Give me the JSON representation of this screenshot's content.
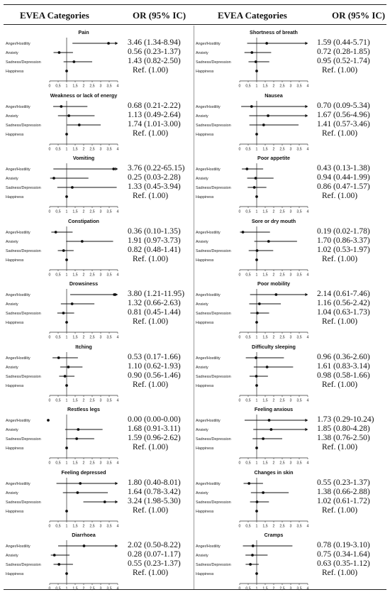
{
  "header": {
    "left_categories": "EVEA Categories",
    "left_or": "OR (95% IC)",
    "right_categories": "EVEA Categories",
    "right_or": "OR (95% IC)"
  },
  "chart_data": {
    "type": "forest",
    "xlim": [
      0,
      4
    ],
    "reference_value": 1,
    "x_tick_labels": [
      "0",
      "0,5",
      "1",
      "1,5",
      "2",
      "2,5",
      "3",
      "3,5",
      "4"
    ],
    "row_labels": [
      "Anger/Hostility",
      "Anxiety",
      "Sadness/Depression",
      "Happiness"
    ],
    "panels": [
      {
        "title": "Pain",
        "column": "left",
        "rows": [
          {
            "label": "Anger/Hostility",
            "or": 3.46,
            "lo": 1.34,
            "hi": 8.94,
            "text": "3.46 (1.34-8.94)"
          },
          {
            "label": "Anxiety",
            "or": 0.56,
            "lo": 0.23,
            "hi": 1.37,
            "text": "0.56 (0.23-1.37)"
          },
          {
            "label": "Sadness/Depression",
            "or": 1.43,
            "lo": 0.82,
            "hi": 2.5,
            "text": "1.43 (0.82-2.50)"
          },
          {
            "label": "Happiness",
            "or": 1.0,
            "lo": 1.0,
            "hi": 1.0,
            "text": "Ref. (1.00)"
          }
        ]
      },
      {
        "title": "Shortness of breath",
        "column": "right",
        "rows": [
          {
            "label": "Anger/Hostility",
            "or": 1.59,
            "lo": 0.44,
            "hi": 5.71,
            "text": "1.59 (0.44-5.71)"
          },
          {
            "label": "Anxiety",
            "or": 0.72,
            "lo": 0.28,
            "hi": 1.85,
            "text": "0.72 (0.28-1.85)"
          },
          {
            "label": "Sadness/Depression",
            "or": 0.95,
            "lo": 0.52,
            "hi": 1.74,
            "text": "0.95 (0.52-1.74)"
          },
          {
            "label": "Happiness",
            "or": 1.0,
            "lo": 1.0,
            "hi": 1.0,
            "text": "Ref. (1.00)"
          }
        ]
      },
      {
        "title": "Weakness or lack of energy",
        "column": "left",
        "rows": [
          {
            "label": "Anger/Hostility",
            "or": 0.68,
            "lo": 0.21,
            "hi": 2.22,
            "text": "0.68 (0.21-2.22)"
          },
          {
            "label": "Anxiety",
            "or": 1.13,
            "lo": 0.49,
            "hi": 2.64,
            "text": "1.13 (0.49-2.64)"
          },
          {
            "label": "Sadness/Depression",
            "or": 1.74,
            "lo": 1.01,
            "hi": 3.0,
            "text": "1.74 (1.01-3.00)"
          },
          {
            "label": "Happiness",
            "or": 1.0,
            "lo": 1.0,
            "hi": 1.0,
            "text": "Ref. (1.00)"
          }
        ]
      },
      {
        "title": "Nausea",
        "column": "right",
        "rows": [
          {
            "label": "Anger/Hostility",
            "or": 0.7,
            "lo": 0.09,
            "hi": 5.34,
            "text": "0.70 (0.09-5.34)"
          },
          {
            "label": "Anxiety",
            "or": 1.67,
            "lo": 0.56,
            "hi": 4.96,
            "text": "1.67 (0.56-4.96)"
          },
          {
            "label": "Sadness/Depression",
            "or": 1.41,
            "lo": 0.57,
            "hi": 3.46,
            "text": "1.41 (0.57-3.46)"
          },
          {
            "label": "Happiness",
            "or": 1.0,
            "lo": 1.0,
            "hi": 1.0,
            "text": "Ref. (1.00)"
          }
        ]
      },
      {
        "title": "Vomiting",
        "column": "left",
        "rows": [
          {
            "label": "Anger/Hostility",
            "or": 3.76,
            "lo": 0.22,
            "hi": 65.15,
            "text": "3.76 (0.22-65.15)"
          },
          {
            "label": "Anxiety",
            "or": 0.25,
            "lo": 0.03,
            "hi": 2.28,
            "text": "0.25 (0.03-2.28)"
          },
          {
            "label": "Sadness/Depression",
            "or": 1.33,
            "lo": 0.45,
            "hi": 3.94,
            "text": "1.33 (0.45-3.94)"
          },
          {
            "label": "Happiness",
            "or": 1.0,
            "lo": 1.0,
            "hi": 1.0,
            "text": "Ref. (1.00)"
          }
        ]
      },
      {
        "title": "Poor appetite",
        "column": "right",
        "rows": [
          {
            "label": "Anger/Hostility",
            "or": 0.43,
            "lo": 0.13,
            "hi": 1.38,
            "text": "0.43 (0.13-1.38)"
          },
          {
            "label": "Anxiety",
            "or": 0.94,
            "lo": 0.44,
            "hi": 1.99,
            "text": "0.94 (0.44-1.99)"
          },
          {
            "label": "Sadness/Depression",
            "or": 0.86,
            "lo": 0.47,
            "hi": 1.57,
            "text": "0.86 (0.47-1.57)"
          },
          {
            "label": "Happiness",
            "or": 1.0,
            "lo": 1.0,
            "hi": 1.0,
            "text": "Ref. (1.00)"
          }
        ]
      },
      {
        "title": "Constipation",
        "column": "left",
        "rows": [
          {
            "label": "Anger/Hostility",
            "or": 0.36,
            "lo": 0.1,
            "hi": 1.35,
            "text": "0.36 (0.10-1.35)"
          },
          {
            "label": "Anxiety",
            "or": 1.91,
            "lo": 0.97,
            "hi": 3.73,
            "text": "1.91 (0.97-3.73)"
          },
          {
            "label": "Sadness/Depression",
            "or": 0.82,
            "lo": 0.48,
            "hi": 1.41,
            "text": "0.82 (0.48-1.41)"
          },
          {
            "label": "Happiness",
            "or": 1.0,
            "lo": 1.0,
            "hi": 1.0,
            "text": "Ref. (1.00)"
          }
        ]
      },
      {
        "title": "Sore or dry mouth",
        "column": "right",
        "rows": [
          {
            "label": "Anger/Hostility",
            "or": 0.19,
            "lo": 0.02,
            "hi": 1.78,
            "text": "0.19 (0.02-1.78)"
          },
          {
            "label": "Anxiety",
            "or": 1.7,
            "lo": 0.86,
            "hi": 3.37,
            "text": "1.70 (0.86-3.37)"
          },
          {
            "label": "Sadness/Depression",
            "or": 1.02,
            "lo": 0.53,
            "hi": 1.97,
            "text": "1.02 (0.53-1.97)"
          },
          {
            "label": "Happiness",
            "or": 1.0,
            "lo": 1.0,
            "hi": 1.0,
            "text": "Ref. (1.00)"
          }
        ]
      },
      {
        "title": "Drowsiness",
        "column": "left",
        "rows": [
          {
            "label": "Anger/Hostility",
            "or": 3.8,
            "lo": 1.21,
            "hi": 11.95,
            "text": "3.80 (1.21-11.95)"
          },
          {
            "label": "Anxiety",
            "or": 1.32,
            "lo": 0.66,
            "hi": 2.63,
            "text": "1.32 (0.66-2.63)"
          },
          {
            "label": "Sadness/Depression",
            "or": 0.81,
            "lo": 0.45,
            "hi": 1.44,
            "text": "0.81 (0.45-1.44)"
          },
          {
            "label": "Happiness",
            "or": 1.0,
            "lo": 1.0,
            "hi": 1.0,
            "text": "Ref. (1.00)"
          }
        ]
      },
      {
        "title": "Poor mobility",
        "column": "right",
        "rows": [
          {
            "label": "Anger/Hostility",
            "or": 2.14,
            "lo": 0.61,
            "hi": 7.46,
            "text": "2.14 (0.61-7.46)"
          },
          {
            "label": "Anxiety",
            "or": 1.16,
            "lo": 0.56,
            "hi": 2.42,
            "text": "1.16 (0.56-2.42)"
          },
          {
            "label": "Sadness/Depression",
            "or": 1.04,
            "lo": 0.63,
            "hi": 1.73,
            "text": "1.04 (0.63-1.73)"
          },
          {
            "label": "Happiness",
            "or": 1.0,
            "lo": 1.0,
            "hi": 1.0,
            "text": "Ref. (1.00)"
          }
        ]
      },
      {
        "title": "Itching",
        "column": "left",
        "rows": [
          {
            "label": "Anger/Hostility",
            "or": 0.53,
            "lo": 0.17,
            "hi": 1.66,
            "text": "0.53 (0.17-1.66)"
          },
          {
            "label": "Anxiety",
            "or": 1.1,
            "lo": 0.62,
            "hi": 1.93,
            "text": "1.10 (0.62-1.93)"
          },
          {
            "label": "Sadness/Depression",
            "or": 0.9,
            "lo": 0.56,
            "hi": 1.46,
            "text": "0.90 (0.56-1.46)"
          },
          {
            "label": "Happiness",
            "or": 1.0,
            "lo": 1.0,
            "hi": 1.0,
            "text": "Ref. (1.00)"
          }
        ]
      },
      {
        "title": "Difficulty sleeping",
        "column": "right",
        "rows": [
          {
            "label": "Anger/Hostility",
            "or": 0.96,
            "lo": 0.36,
            "hi": 2.6,
            "text": "0.96 (0.36-2.60)"
          },
          {
            "label": "Anxiety",
            "or": 1.61,
            "lo": 0.83,
            "hi": 3.14,
            "text": "1.61 (0.83-3.14)"
          },
          {
            "label": "Sadness/Depression",
            "or": 0.98,
            "lo": 0.58,
            "hi": 1.66,
            "text": "0.98 (0.58-1.66)"
          },
          {
            "label": "Happiness",
            "or": 1.0,
            "lo": 1.0,
            "hi": 1.0,
            "text": "Ref. (1.00)"
          }
        ]
      },
      {
        "title": "Restless legs",
        "column": "left",
        "rows": [
          {
            "label": "Anger/Hostility",
            "or": 0.0,
            "lo": 0.0,
            "hi": 0.0,
            "text": "0.00 (0.00-0.00)"
          },
          {
            "label": "Anxiety",
            "or": 1.68,
            "lo": 0.91,
            "hi": 3.11,
            "text": "1.68 (0.91-3.11)"
          },
          {
            "label": "Sadness/Depression",
            "or": 1.59,
            "lo": 0.96,
            "hi": 2.62,
            "text": "1.59 (0.96-2.62)"
          },
          {
            "label": "Happiness",
            "or": 1.0,
            "lo": 1.0,
            "hi": 1.0,
            "text": "Ref. (1.00)"
          }
        ]
      },
      {
        "title": "Feeling anxious",
        "column": "right",
        "rows": [
          {
            "label": "Anger/Hostility",
            "or": 1.73,
            "lo": 0.29,
            "hi": 10.24,
            "text": "1.73 (0.29-10.24)"
          },
          {
            "label": "Anxiety",
            "or": 1.85,
            "lo": 0.8,
            "hi": 4.28,
            "text": "1.85 (0.80-4.28)"
          },
          {
            "label": "Sadness/Depression",
            "or": 1.38,
            "lo": 0.76,
            "hi": 2.5,
            "text": "1.38 (0.76-2.50)"
          },
          {
            "label": "Happiness",
            "or": 1.0,
            "lo": 1.0,
            "hi": 1.0,
            "text": "Ref. (1.00)"
          }
        ]
      },
      {
        "title": "Feeling depressed",
        "column": "left",
        "rows": [
          {
            "label": "Anger/Hostility",
            "or": 1.8,
            "lo": 0.4,
            "hi": 8.01,
            "text": "1.80 (0.40-8.01)"
          },
          {
            "label": "Anxiety",
            "or": 1.64,
            "lo": 0.78,
            "hi": 3.42,
            "text": "1.64 (0.78-3.42)"
          },
          {
            "label": "Sadness/Depression",
            "or": 3.24,
            "lo": 1.98,
            "hi": 5.3,
            "text": "3.24 (1.98-5.30)"
          },
          {
            "label": "Happiness",
            "or": 1.0,
            "lo": 1.0,
            "hi": 1.0,
            "text": "Ref. (1.00)"
          }
        ]
      },
      {
        "title": "Changes in skin",
        "column": "right",
        "rows": [
          {
            "label": "Anger/Hostility",
            "or": 0.55,
            "lo": 0.23,
            "hi": 1.37,
            "text": "0.55 (0.23-1.37)"
          },
          {
            "label": "Anxiety",
            "or": 1.38,
            "lo": 0.66,
            "hi": 2.88,
            "text": "1.38 (0.66-2.88)"
          },
          {
            "label": "Sadness/Depression",
            "or": 1.02,
            "lo": 0.61,
            "hi": 1.72,
            "text": "1.02 (0.61-1.72)"
          },
          {
            "label": "Happiness",
            "or": 1.0,
            "lo": 1.0,
            "hi": 1.0,
            "text": "Ref. (1.00)"
          }
        ]
      },
      {
        "title": "Diarrhoea",
        "column": "left",
        "rows": [
          {
            "label": "Anger/Hostility",
            "or": 2.02,
            "lo": 0.5,
            "hi": 8.22,
            "text": "2.02 (0.50-8.22)"
          },
          {
            "label": "Anxiety",
            "or": 0.28,
            "lo": 0.07,
            "hi": 1.17,
            "text": "0.28 (0.07-1.17)"
          },
          {
            "label": "Sadness/Depression",
            "or": 0.55,
            "lo": 0.23,
            "hi": 1.37,
            "text": "0.55 (0.23-1.37)"
          },
          {
            "label": "Happiness",
            "or": 1.0,
            "lo": 1.0,
            "hi": 1.0,
            "text": "Ref. (1.00)"
          }
        ]
      },
      {
        "title": "Cramps",
        "column": "right",
        "rows": [
          {
            "label": "Anger/Hostility",
            "or": 0.78,
            "lo": 0.19,
            "hi": 3.1,
            "text": "0.78 (0.19-3.10)"
          },
          {
            "label": "Anxiety",
            "or": 0.75,
            "lo": 0.34,
            "hi": 1.64,
            "text": "0.75 (0.34-1.64)"
          },
          {
            "label": "Sadness/Depression",
            "or": 0.63,
            "lo": 0.35,
            "hi": 1.12,
            "text": "0.63 (0.35-1.12)"
          },
          {
            "label": "Happiness",
            "or": 1.0,
            "lo": 1.0,
            "hi": 1.0,
            "text": "Ref. (1.00)"
          }
        ]
      }
    ]
  }
}
